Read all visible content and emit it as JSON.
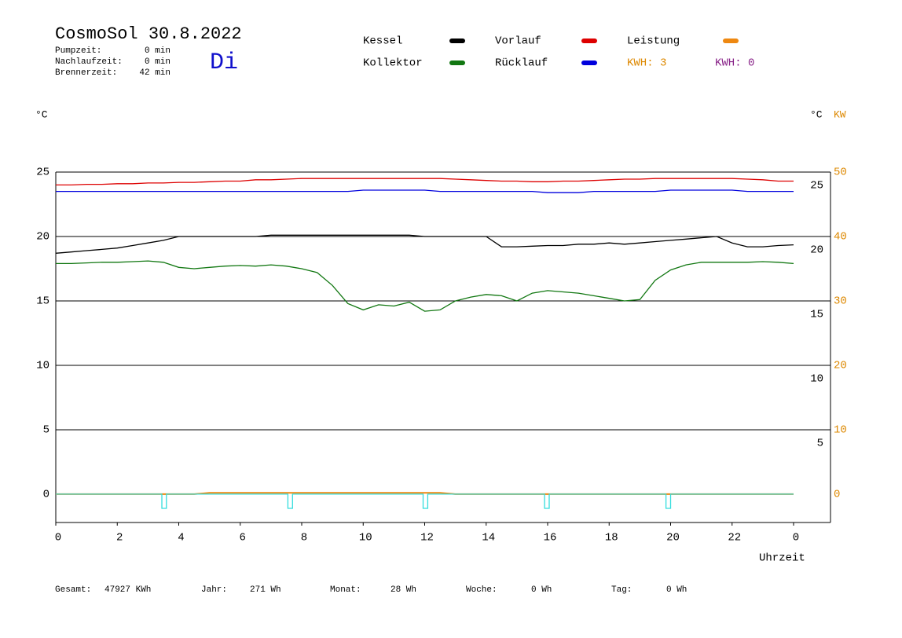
{
  "header": {
    "title": "CosmoSol 30.8.2022",
    "weekday": "Di",
    "stats": [
      [
        "Pumpzeit:",
        "0 min"
      ],
      [
        "Nachlaufzeit:",
        "0 min"
      ],
      [
        "Brennerzeit:",
        "42 min"
      ]
    ],
    "kwh": [
      "KWH: 3",
      "KWH: 0"
    ]
  },
  "footer": [
    [
      "Gesamt:",
      "47927 KWh"
    ],
    [
      "Jahr:",
      "271 Wh"
    ],
    [
      "Monat:",
      "28 Wh"
    ],
    [
      "Woche:",
      "0 Wh"
    ],
    [
      "Tag:",
      "0 Wh"
    ]
  ],
  "chart_data": {
    "type": "line",
    "ylabel": "°C",
    "y2label_c": "°C",
    "y2label": "KW",
    "xlabel": "Uhrzeit",
    "xlim": [
      0,
      25.2
    ],
    "xticks": [
      0,
      2,
      4,
      6,
      8,
      10,
      12,
      14,
      16,
      18,
      20,
      22,
      {
        "value": 24,
        "label": "0"
      }
    ],
    "ylim": [
      -2.2,
      25
    ],
    "yticks": [
      0,
      5,
      10,
      15,
      20,
      25
    ],
    "y2lim": [
      -4.4,
      50
    ],
    "y2ticks": [
      0,
      10,
      20,
      30,
      40,
      50
    ],
    "grid": true,
    "x": [
      0,
      0.5,
      1,
      1.5,
      2,
      2.5,
      3,
      3.5,
      4,
      4.5,
      5,
      5.5,
      6,
      6.5,
      7,
      7.5,
      8,
      8.5,
      9,
      9.5,
      10,
      10.5,
      11,
      11.5,
      12,
      12.5,
      13,
      13.5,
      14,
      14.5,
      15,
      15.5,
      16,
      16.5,
      17,
      17.5,
      18,
      18.5,
      19,
      19.5,
      20,
      20.5,
      21,
      21.5,
      22,
      22.5,
      23,
      23.5,
      24
    ],
    "series": [
      {
        "name": "Kessel",
        "color": "#000000",
        "values": [
          18.7,
          18.8,
          18.9,
          19.0,
          19.1,
          19.3,
          19.5,
          19.7,
          20.0,
          20.0,
          20.0,
          20.0,
          20.0,
          20.0,
          20.1,
          20.1,
          20.1,
          20.1,
          20.1,
          20.1,
          20.1,
          20.1,
          20.1,
          20.1,
          20.0,
          20.0,
          20.0,
          20.0,
          20.0,
          19.2,
          19.2,
          19.25,
          19.3,
          19.3,
          19.4,
          19.4,
          19.5,
          19.4,
          19.5,
          19.6,
          19.7,
          19.8,
          19.9,
          20.0,
          19.5,
          19.2,
          19.2,
          19.3,
          19.35
        ]
      },
      {
        "name": "Vorlauf",
        "color": "#dd0000",
        "values": [
          24.0,
          24.0,
          24.05,
          24.05,
          24.1,
          24.1,
          24.15,
          24.15,
          24.2,
          24.2,
          24.25,
          24.3,
          24.3,
          24.4,
          24.4,
          24.45,
          24.5,
          24.5,
          24.5,
          24.5,
          24.5,
          24.5,
          24.5,
          24.5,
          24.5,
          24.5,
          24.45,
          24.4,
          24.35,
          24.3,
          24.3,
          24.25,
          24.25,
          24.3,
          24.3,
          24.35,
          24.4,
          24.45,
          24.45,
          24.5,
          24.5,
          24.5,
          24.5,
          24.5,
          24.5,
          24.45,
          24.4,
          24.3,
          24.3
        ]
      },
      {
        "name": "Leistung",
        "color": "#ee8811",
        "axis": "y2",
        "values": [
          0,
          0,
          0,
          0,
          0,
          0,
          0,
          0,
          0,
          0,
          0.2,
          0.2,
          0.2,
          0.2,
          0.2,
          0.2,
          0.2,
          0.2,
          0.2,
          0.2,
          0.2,
          0.2,
          0.2,
          0.2,
          0.2,
          0.2,
          0,
          0,
          0,
          0,
          0,
          0,
          0,
          0,
          0,
          0,
          0,
          0,
          0,
          0,
          0,
          0,
          0,
          0,
          0,
          0,
          0,
          0,
          0
        ]
      },
      {
        "name": "Kollektor",
        "color": "#117711",
        "values": [
          17.9,
          17.9,
          17.95,
          18.0,
          18.0,
          18.05,
          18.1,
          18.0,
          17.6,
          17.5,
          17.6,
          17.7,
          17.75,
          17.7,
          17.8,
          17.7,
          17.5,
          17.2,
          16.2,
          14.8,
          14.3,
          14.7,
          14.6,
          14.9,
          14.2,
          14.3,
          15.0,
          15.3,
          15.5,
          15.4,
          15.0,
          15.6,
          15.8,
          15.7,
          15.6,
          15.4,
          15.2,
          15.0,
          15.1,
          16.6,
          17.4,
          17.8,
          18.0,
          18.0,
          18.0,
          18.0,
          18.05,
          18.0,
          17.9
        ]
      },
      {
        "name": "Rücklauf",
        "color": "#0000dd",
        "values": [
          23.5,
          23.5,
          23.5,
          23.5,
          23.5,
          23.5,
          23.5,
          23.5,
          23.5,
          23.5,
          23.5,
          23.5,
          23.5,
          23.5,
          23.5,
          23.5,
          23.5,
          23.5,
          23.5,
          23.5,
          23.6,
          23.6,
          23.6,
          23.6,
          23.6,
          23.5,
          23.5,
          23.5,
          23.5,
          23.5,
          23.5,
          23.5,
          23.4,
          23.4,
          23.4,
          23.5,
          23.5,
          23.5,
          23.5,
          23.5,
          23.6,
          23.6,
          23.6,
          23.6,
          23.6,
          23.5,
          23.5,
          23.5,
          23.5
        ]
      },
      {
        "color": "#33dddd",
        "x": [
          0,
          3.45,
          3.45,
          3.6,
          3.6,
          7.55,
          7.55,
          7.7,
          7.7,
          11.95,
          11.95,
          12.1,
          12.1,
          15.9,
          15.9,
          16.05,
          16.05,
          19.85,
          19.85,
          20.0,
          20.0,
          24
        ],
        "values": [
          0,
          0,
          -1.1,
          -1.1,
          0,
          0,
          -1.1,
          -1.1,
          0,
          0,
          -1.1,
          -1.1,
          0,
          0,
          -1.1,
          -1.1,
          0,
          0,
          -1.1,
          -1.1,
          0,
          0
        ]
      }
    ],
    "legend_colors": [
      "#000000",
      "#dd0000",
      "#ee8811",
      "#117711",
      "#0000dd"
    ]
  }
}
